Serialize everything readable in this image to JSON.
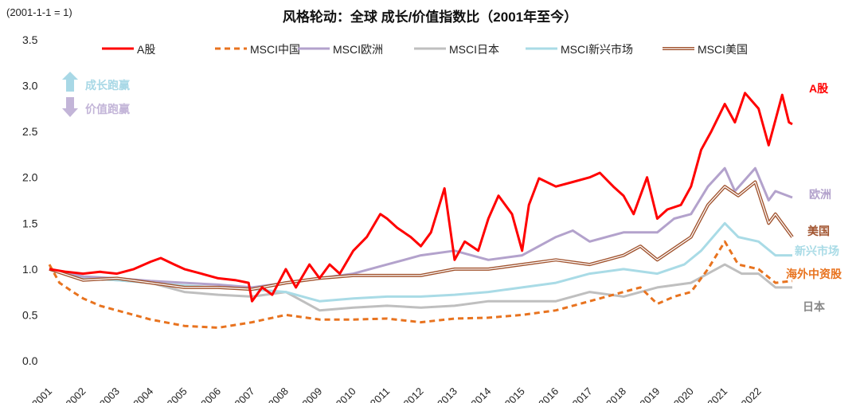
{
  "chart_data": {
    "type": "line",
    "title": "风格轮动：全球 成长/价值指数比（2001年至今）",
    "ylabel": "(2001-1-1 = 1)",
    "xlabel": "",
    "ylim": [
      0,
      3.5
    ],
    "xlim": [
      2001,
      2023
    ],
    "yticks": [
      "0.0",
      "0.5",
      "1.0",
      "1.5",
      "2.0",
      "2.5",
      "3.0",
      "3.5"
    ],
    "xticks": [
      "2001",
      "2002",
      "2003",
      "2004",
      "2005",
      "2006",
      "2007",
      "2008",
      "2009",
      "2010",
      "2011",
      "2012",
      "2013",
      "2014",
      "2015",
      "2016",
      "2017",
      "2018",
      "2019",
      "2020",
      "2021",
      "2022"
    ],
    "grid": false,
    "legend_position": "top",
    "annotations": {
      "up": "成长跑赢",
      "down": "价值跑赢",
      "up_color": "#a8d8e6",
      "down_color": "#c3b5d8"
    },
    "series": [
      {
        "name": "A股",
        "end_label": "A股",
        "color": "#ff0000",
        "style": "solid",
        "x": [
          2001,
          2001.5,
          2002,
          2002.5,
          2003,
          2003.5,
          2004,
          2004.3,
          2004.7,
          2005,
          2005.5,
          2006,
          2006.5,
          2006.9,
          2007,
          2007.3,
          2007.6,
          2008,
          2008.3,
          2008.7,
          2009,
          2009.3,
          2009.6,
          2010,
          2010.4,
          2010.8,
          2011,
          2011.3,
          2011.7,
          2012,
          2012.3,
          2012.7,
          2013,
          2013.3,
          2013.7,
          2014,
          2014.3,
          2014.7,
          2015,
          2015.2,
          2015.5,
          2016,
          2016.5,
          2017,
          2017.3,
          2017.7,
          2018,
          2018.3,
          2018.7,
          2019,
          2019.3,
          2019.7,
          2020,
          2020.3,
          2020.6,
          2021,
          2021.3,
          2021.6,
          2022,
          2022.3,
          2022.7,
          2022.9,
          2023
        ],
        "y": [
          1.0,
          0.97,
          0.95,
          0.97,
          0.95,
          1.0,
          1.08,
          1.12,
          1.05,
          1.0,
          0.95,
          0.9,
          0.88,
          0.85,
          0.65,
          0.8,
          0.72,
          1.0,
          0.8,
          1.05,
          0.9,
          1.05,
          0.95,
          1.2,
          1.35,
          1.6,
          1.55,
          1.45,
          1.35,
          1.25,
          1.4,
          1.88,
          1.1,
          1.3,
          1.2,
          1.55,
          1.8,
          1.6,
          1.2,
          1.7,
          1.99,
          1.9,
          1.95,
          2.0,
          2.05,
          1.9,
          1.8,
          1.6,
          2.0,
          1.55,
          1.65,
          1.7,
          1.9,
          2.3,
          2.5,
          2.8,
          2.6,
          2.92,
          2.75,
          2.35,
          2.9,
          2.6,
          2.58
        ]
      },
      {
        "name": "MSCI中国",
        "end_label": "海外中资股",
        "color": "#e8731f",
        "style": "dashed",
        "x": [
          2001,
          2001.3,
          2001.7,
          2002,
          2002.5,
          2003,
          2003.5,
          2004,
          2005,
          2006,
          2007,
          2008,
          2009,
          2010,
          2011,
          2012,
          2013,
          2014,
          2015,
          2016,
          2017,
          2018,
          2018.5,
          2019,
          2019.5,
          2020,
          2020.5,
          2021,
          2021.4,
          2022,
          2022.5,
          2023
        ],
        "y": [
          1.05,
          0.85,
          0.75,
          0.68,
          0.6,
          0.55,
          0.5,
          0.45,
          0.38,
          0.36,
          0.42,
          0.5,
          0.45,
          0.45,
          0.46,
          0.42,
          0.46,
          0.47,
          0.5,
          0.55,
          0.65,
          0.75,
          0.8,
          0.62,
          0.7,
          0.75,
          1.0,
          1.3,
          1.05,
          1.0,
          0.85,
          0.87
        ]
      },
      {
        "name": "MSCI欧洲",
        "end_label": "欧洲",
        "color": "#b3a2cc",
        "style": "solid",
        "x": [
          2001,
          2002,
          2003,
          2004,
          2005,
          2006,
          2007,
          2008,
          2009,
          2010,
          2011,
          2012,
          2013,
          2014,
          2015,
          2016,
          2016.5,
          2017,
          2018,
          2019,
          2019.5,
          2020,
          2020.5,
          2021,
          2021.3,
          2021.9,
          2022.3,
          2022.5,
          2023
        ],
        "y": [
          1.0,
          0.92,
          0.9,
          0.87,
          0.85,
          0.83,
          0.8,
          0.85,
          0.9,
          0.95,
          1.05,
          1.15,
          1.2,
          1.1,
          1.15,
          1.35,
          1.42,
          1.3,
          1.4,
          1.4,
          1.55,
          1.6,
          1.9,
          2.1,
          1.85,
          2.1,
          1.75,
          1.85,
          1.78
        ]
      },
      {
        "name": "MSCI日本",
        "end_label": "日本",
        "color": "#bfbfbf",
        "style": "solid",
        "x": [
          2001,
          2002,
          2003,
          2004,
          2005,
          2006,
          2007,
          2008,
          2009,
          2010,
          2011,
          2012,
          2013,
          2014,
          2015,
          2016,
          2017,
          2018,
          2019,
          2020,
          2021,
          2021.5,
          2022,
          2022.5,
          2023
        ],
        "y": [
          1.0,
          0.9,
          0.88,
          0.85,
          0.75,
          0.72,
          0.7,
          0.75,
          0.55,
          0.58,
          0.6,
          0.58,
          0.6,
          0.65,
          0.65,
          0.65,
          0.75,
          0.7,
          0.8,
          0.85,
          1.05,
          0.95,
          0.95,
          0.8,
          0.8
        ]
      },
      {
        "name": "MSCI新兴市场",
        "end_label": "新兴市场",
        "color": "#a9dbe6",
        "style": "solid",
        "x": [
          2001,
          2002,
          2003,
          2004,
          2005,
          2006,
          2007,
          2008,
          2009,
          2010,
          2011,
          2012,
          2013,
          2014,
          2015,
          2016,
          2017,
          2018,
          2019,
          2019.8,
          2020.3,
          2021,
          2021.4,
          2022,
          2022.5,
          2023
        ],
        "y": [
          1.0,
          0.9,
          0.88,
          0.85,
          0.82,
          0.8,
          0.78,
          0.75,
          0.65,
          0.68,
          0.7,
          0.7,
          0.72,
          0.75,
          0.8,
          0.85,
          0.95,
          1.0,
          0.95,
          1.05,
          1.2,
          1.5,
          1.35,
          1.3,
          1.15,
          1.15
        ]
      },
      {
        "name": "MSCI美国",
        "end_label": "美国",
        "color": "#a0522d",
        "style": "double",
        "x": [
          2001,
          2002,
          2003,
          2004,
          2005,
          2006,
          2007,
          2008,
          2009,
          2010,
          2011,
          2012,
          2013,
          2014,
          2015,
          2016,
          2017,
          2018,
          2018.5,
          2019,
          2019.8,
          2020,
          2020.5,
          2021,
          2021.4,
          2021.9,
          2022.3,
          2022.5,
          2023
        ],
        "y": [
          1.0,
          0.88,
          0.9,
          0.85,
          0.8,
          0.8,
          0.78,
          0.85,
          0.9,
          0.93,
          0.93,
          0.93,
          1.0,
          1.0,
          1.05,
          1.1,
          1.05,
          1.15,
          1.25,
          1.1,
          1.3,
          1.35,
          1.7,
          1.9,
          1.8,
          1.95,
          1.5,
          1.6,
          1.35
        ]
      }
    ]
  }
}
